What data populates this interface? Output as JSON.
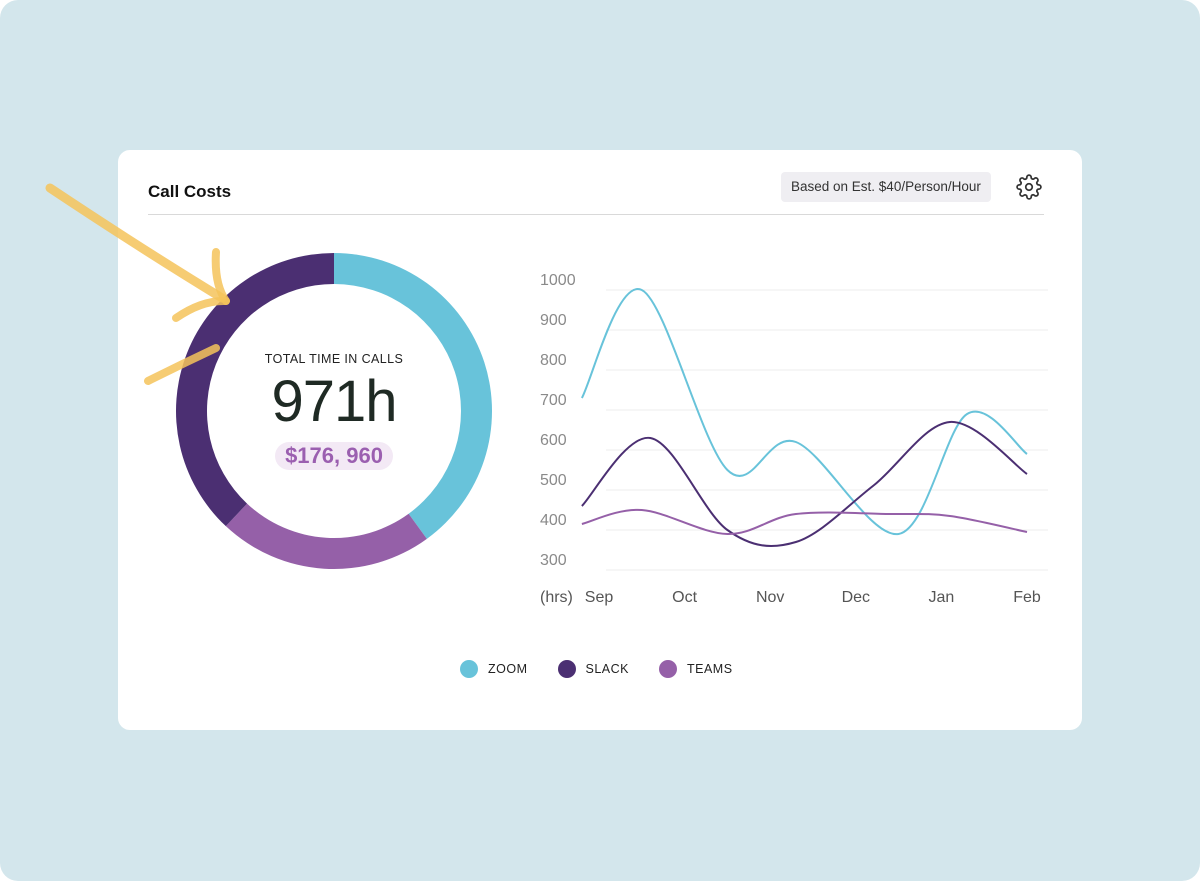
{
  "card": {
    "title": "Call Costs",
    "rate_badge": "Based on Est. $40/Person/Hour",
    "settings_icon": "gear-icon"
  },
  "summary": {
    "label": "TOTAL TIME IN CALLS",
    "hours": "971h",
    "cost": "$176, 960"
  },
  "colors": {
    "zoom": "#68c3da",
    "slack": "#4b2f72",
    "teams": "#9560a8",
    "arrow": "#f5c35a"
  },
  "chart_data": [
    {
      "type": "pie",
      "subtype": "donut",
      "labels": [
        "ZOOM",
        "TEAMS",
        "SLACK"
      ],
      "values": [
        40,
        22,
        38
      ],
      "start": "top",
      "direction": "clockwise"
    },
    {
      "type": "line",
      "smooth": true,
      "categories": [
        "Sep",
        "Oct",
        "Nov",
        "Dec",
        "Jan",
        "Feb"
      ],
      "xlabel": "(hrs)",
      "ylim": [
        300,
        1000
      ],
      "yticks": [
        1000,
        900,
        800,
        700,
        600,
        500,
        400,
        300
      ],
      "grid": true,
      "series": [
        {
          "name": "ZOOM",
          "x": [
            -0.2,
            0.5,
            1.5,
            2.3,
            3.5,
            4.3,
            5.0
          ],
          "values": [
            730,
            1000,
            550,
            620,
            390,
            690,
            590
          ]
        },
        {
          "name": "SLACK",
          "x": [
            -0.2,
            0.6,
            1.5,
            2.3,
            3.2,
            4.1,
            5.0
          ],
          "values": [
            460,
            630,
            400,
            370,
            510,
            670,
            540
          ]
        },
        {
          "name": "TEAMS",
          "x": [
            -0.2,
            0.5,
            1.5,
            2.3,
            3.4,
            4.1,
            5.0
          ],
          "values": [
            415,
            450,
            390,
            440,
            440,
            435,
            395
          ]
        }
      ]
    }
  ],
  "legend": [
    {
      "label": "ZOOM"
    },
    {
      "label": "SLACK"
    },
    {
      "label": "TEAMS"
    }
  ]
}
